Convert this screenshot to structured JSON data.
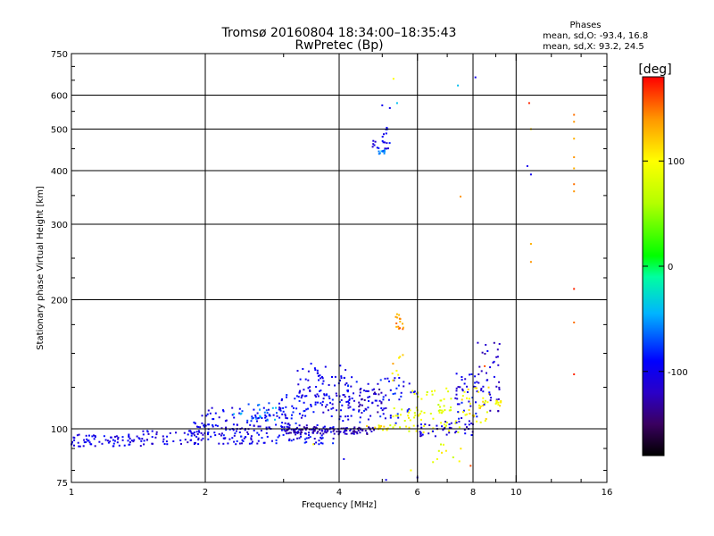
{
  "chart_data": {
    "type": "scatter",
    "title": "Tromsø 20160804 18:34:00–18:35:43",
    "subtitle": "RwPretec (Bp)",
    "xlabel": "Frequency [MHz]",
    "ylabel": "Stationary phase Virtual Height [km]",
    "x_scale": "log",
    "y_scale": "log",
    "xlim": [
      1,
      16
    ],
    "ylim": [
      75,
      750
    ],
    "x_ticks": [
      {
        "value": 1,
        "label": "1"
      },
      {
        "value": 2,
        "label": "2"
      },
      {
        "value": 4,
        "label": "4"
      },
      {
        "value": 6,
        "label": "6"
      },
      {
        "value": 8,
        "label": "8"
      },
      {
        "value": 10,
        "label": "10"
      },
      {
        "value": 16,
        "label": "16"
      }
    ],
    "y_ticks": [
      {
        "value": 75,
        "label": "75"
      },
      {
        "value": 100,
        "label": "100"
      },
      {
        "value": 200,
        "label": "200"
      },
      {
        "value": 300,
        "label": "300"
      },
      {
        "value": 400,
        "label": "400"
      },
      {
        "value": 500,
        "label": "500"
      },
      {
        "value": 600,
        "label": "600"
      },
      {
        "value": 750,
        "label": "750"
      }
    ],
    "grid_x": [
      2,
      4,
      6,
      8,
      10
    ],
    "grid_y": [
      100,
      200,
      300,
      400,
      500,
      600
    ],
    "grid": true,
    "phase_stats": {
      "heading": "Phases",
      "line1": "mean, sd,O: -93.4, 16.8",
      "line2": "mean, sd,X:  93.2, 24.5"
    },
    "colorbar": {
      "label": "[deg]",
      "range": [
        -180,
        180
      ],
      "ticks": [
        {
          "value": 100,
          "label": "100"
        },
        {
          "value": 0,
          "label": "0"
        },
        {
          "value": -100,
          "label": "-100"
        }
      ],
      "stops": [
        {
          "value": -180,
          "color": "#000000"
        },
        {
          "value": -150,
          "color": "#3a0060"
        },
        {
          "value": -120,
          "color": "#2a00c8"
        },
        {
          "value": -90,
          "color": "#0000ff"
        },
        {
          "value": -45,
          "color": "#00b4ff"
        },
        {
          "value": -10,
          "color": "#00ffa0"
        },
        {
          "value": 10,
          "color": "#00ff00"
        },
        {
          "value": 60,
          "color": "#b4ff00"
        },
        {
          "value": 100,
          "color": "#ffff00"
        },
        {
          "value": 140,
          "color": "#ff9600"
        },
        {
          "value": 180,
          "color": "#ff0000"
        }
      ]
    },
    "clusters": [
      {
        "x_range": [
          1.0,
          1.45
        ],
        "y_range": [
          91,
          97
        ],
        "phase": -100,
        "count": 70
      },
      {
        "x_range": [
          1.45,
          2.0
        ],
        "y_range": [
          92,
          99
        ],
        "phase": -105,
        "count": 45
      },
      {
        "x_range": [
          1.85,
          3.9
        ],
        "y_range": [
          92,
          103
        ],
        "phase": -100,
        "count": 170
      },
      {
        "x_range": [
          3.0,
          4.8
        ],
        "y_range": [
          97,
          101
        ],
        "phase": -120,
        "count": 110
      },
      {
        "x_range": [
          1.85,
          3.2
        ],
        "y_range": [
          100,
          112
        ],
        "phase": -95,
        "count": 70
      },
      {
        "x_range": [
          2.3,
          2.9
        ],
        "y_range": [
          104,
          115
        ],
        "phase": -60,
        "count": 25
      },
      {
        "x_range": [
          2.9,
          4.2
        ],
        "y_range": [
          106,
          120
        ],
        "phase": -100,
        "count": 60
      },
      {
        "x_range": [
          3.2,
          4.2
        ],
        "y_range": [
          118,
          142
        ],
        "phase": -100,
        "count": 60
      },
      {
        "x_range": [
          4.0,
          6.0
        ],
        "y_range": [
          103,
          132
        ],
        "phase": -95,
        "count": 90
      },
      {
        "x_range": [
          4.4,
          5.1
        ],
        "y_range": [
          108,
          125
        ],
        "phase": -120,
        "count": 30
      },
      {
        "x_range": [
          4.6,
          5.2
        ],
        "y_range": [
          99,
          102
        ],
        "phase": 100,
        "count": 15
      },
      {
        "x_range": [
          5.2,
          7.5
        ],
        "y_range": [
          98,
          112
        ],
        "phase": 90,
        "count": 55
      },
      {
        "x_range": [
          5.8,
          7.2
        ],
        "y_range": [
          108,
          125
        ],
        "phase": 80,
        "count": 25
      },
      {
        "x_range": [
          6.0,
          8.0
        ],
        "y_range": [
          96,
          104
        ],
        "phase": -110,
        "count": 40
      },
      {
        "x_range": [
          7.3,
          8.2
        ],
        "y_range": [
          102,
          135
        ],
        "phase": -100,
        "count": 40
      },
      {
        "x_range": [
          7.5,
          8.8
        ],
        "y_range": [
          103,
          125
        ],
        "phase": 100,
        "count": 35
      },
      {
        "x_range": [
          8.2,
          9.2
        ],
        "y_range": [
          108,
          162
        ],
        "phase": -110,
        "count": 40
      },
      {
        "x_range": [
          9.0,
          9.3
        ],
        "y_range": [
          113,
          117
        ],
        "phase": 100,
        "count": 10
      },
      {
        "x_range": [
          5.35,
          5.6
        ],
        "y_range": [
          170,
          186
        ],
        "phase": 140,
        "count": 15
      },
      {
        "x_range": [
          5.2,
          5.6
        ],
        "y_range": [
          128,
          158
        ],
        "phase": 120,
        "count": 8
      },
      {
        "x_range": [
          6.5,
          7.6
        ],
        "y_range": [
          82,
          92
        ],
        "phase": 90,
        "count": 10
      },
      {
        "x_range": [
          4.7,
          5.2
        ],
        "y_range": [
          450,
          470
        ],
        "phase": -100,
        "count": 15
      },
      {
        "x_range": [
          4.9,
          5.1
        ],
        "y_range": [
          435,
          448
        ],
        "phase": -60,
        "count": 10
      },
      {
        "x_range": [
          5.0,
          5.15
        ],
        "y_range": [
          480,
          505
        ],
        "phase": -100,
        "count": 6
      }
    ],
    "points": [
      {
        "x": 5.3,
        "y": 655,
        "phase": 100
      },
      {
        "x": 5.0,
        "y": 568,
        "phase": -100
      },
      {
        "x": 5.2,
        "y": 560,
        "phase": -100
      },
      {
        "x": 5.4,
        "y": 575,
        "phase": -40
      },
      {
        "x": 7.4,
        "y": 632,
        "phase": -40
      },
      {
        "x": 8.1,
        "y": 660,
        "phase": -100
      },
      {
        "x": 7.5,
        "y": 348,
        "phase": 140
      },
      {
        "x": 10.7,
        "y": 575,
        "phase": 170
      },
      {
        "x": 10.8,
        "y": 500,
        "phase": 120
      },
      {
        "x": 10.6,
        "y": 410,
        "phase": -100
      },
      {
        "x": 10.8,
        "y": 392,
        "phase": -100
      },
      {
        "x": 10.8,
        "y": 270,
        "phase": 130
      },
      {
        "x": 10.8,
        "y": 245,
        "phase": 140
      },
      {
        "x": 13.5,
        "y": 540,
        "phase": 150
      },
      {
        "x": 13.5,
        "y": 520,
        "phase": 140
      },
      {
        "x": 13.5,
        "y": 475,
        "phase": 130
      },
      {
        "x": 13.5,
        "y": 430,
        "phase": 140
      },
      {
        "x": 13.5,
        "y": 405,
        "phase": 130
      },
      {
        "x": 13.5,
        "y": 372,
        "phase": 150
      },
      {
        "x": 13.5,
        "y": 358,
        "phase": 140
      },
      {
        "x": 13.5,
        "y": 212,
        "phase": 170
      },
      {
        "x": 13.5,
        "y": 177,
        "phase": 150
      },
      {
        "x": 13.5,
        "y": 134,
        "phase": 170
      },
      {
        "x": 7.9,
        "y": 82,
        "phase": 160
      },
      {
        "x": 6.0,
        "y": 77,
        "phase": -100
      },
      {
        "x": 4.1,
        "y": 85,
        "phase": -100
      },
      {
        "x": 5.8,
        "y": 80,
        "phase": 100
      },
      {
        "x": 3.5,
        "y": 92,
        "phase": 100
      },
      {
        "x": 8.5,
        "y": 140,
        "phase": 160
      },
      {
        "x": 5.1,
        "y": 76,
        "phase": -100
      }
    ]
  }
}
